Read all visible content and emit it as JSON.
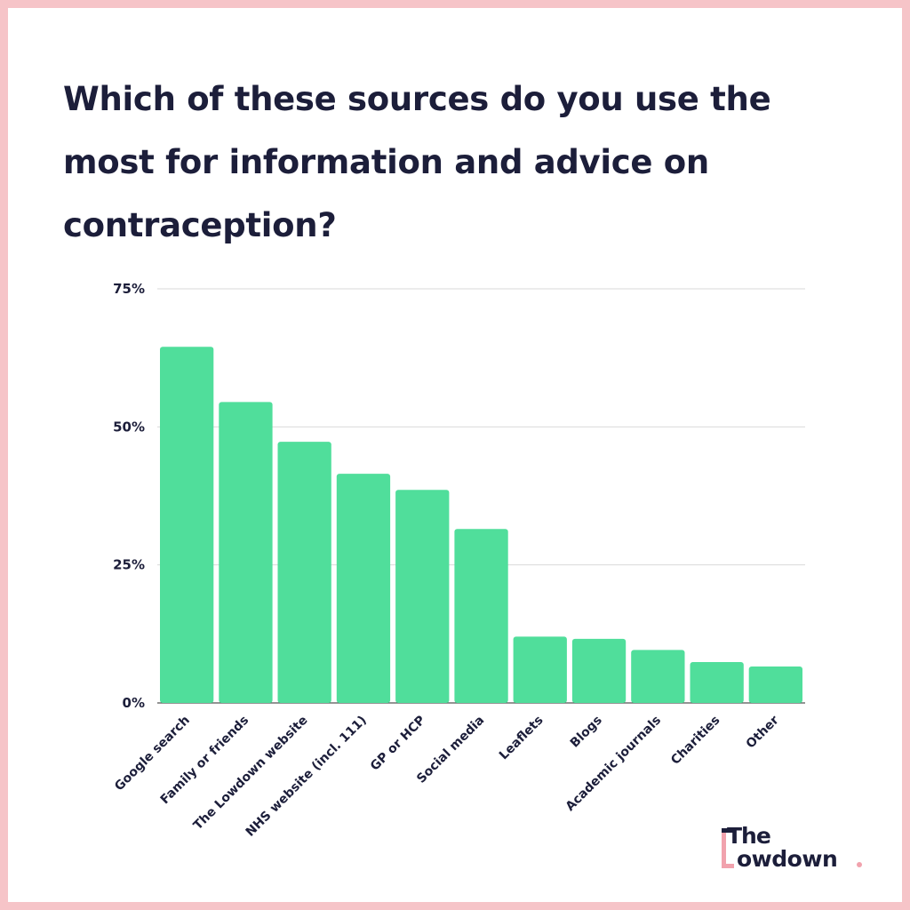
{
  "title": "Which of these sources do you use the most for information and advice on contraception?",
  "logo": {
    "top": "The",
    "bottom": "owdown",
    "text": "The Lowdown."
  },
  "colors": {
    "bar": "#50de9b",
    "text": "#1c1e3a",
    "border": "#f6c4c8",
    "grid": "#d9d9d9",
    "accent": "#f1a2ad"
  },
  "chart_data": {
    "type": "bar",
    "title": "Which of these sources do you use the most for information and advice on contraception?",
    "categories": [
      "Google search",
      "Family or friends",
      "The Lowdown website",
      "NHS website (incl. 111)",
      "GP or HCP",
      "Social media",
      "Leaflets",
      "Blogs",
      "Academic journals",
      "Charities",
      "Other"
    ],
    "values": [
      64.5,
      54.5,
      47.3,
      41.5,
      38.6,
      31.5,
      12,
      11.6,
      9.6,
      7.4,
      6.6
    ],
    "y_ticks": [
      "0%",
      "25%",
      "50%",
      "75%"
    ],
    "y_tick_values": [
      0,
      25,
      50,
      75
    ],
    "ylim": [
      0,
      75
    ],
    "xlabel": "",
    "ylabel": "",
    "grid": true,
    "legend": "none"
  }
}
